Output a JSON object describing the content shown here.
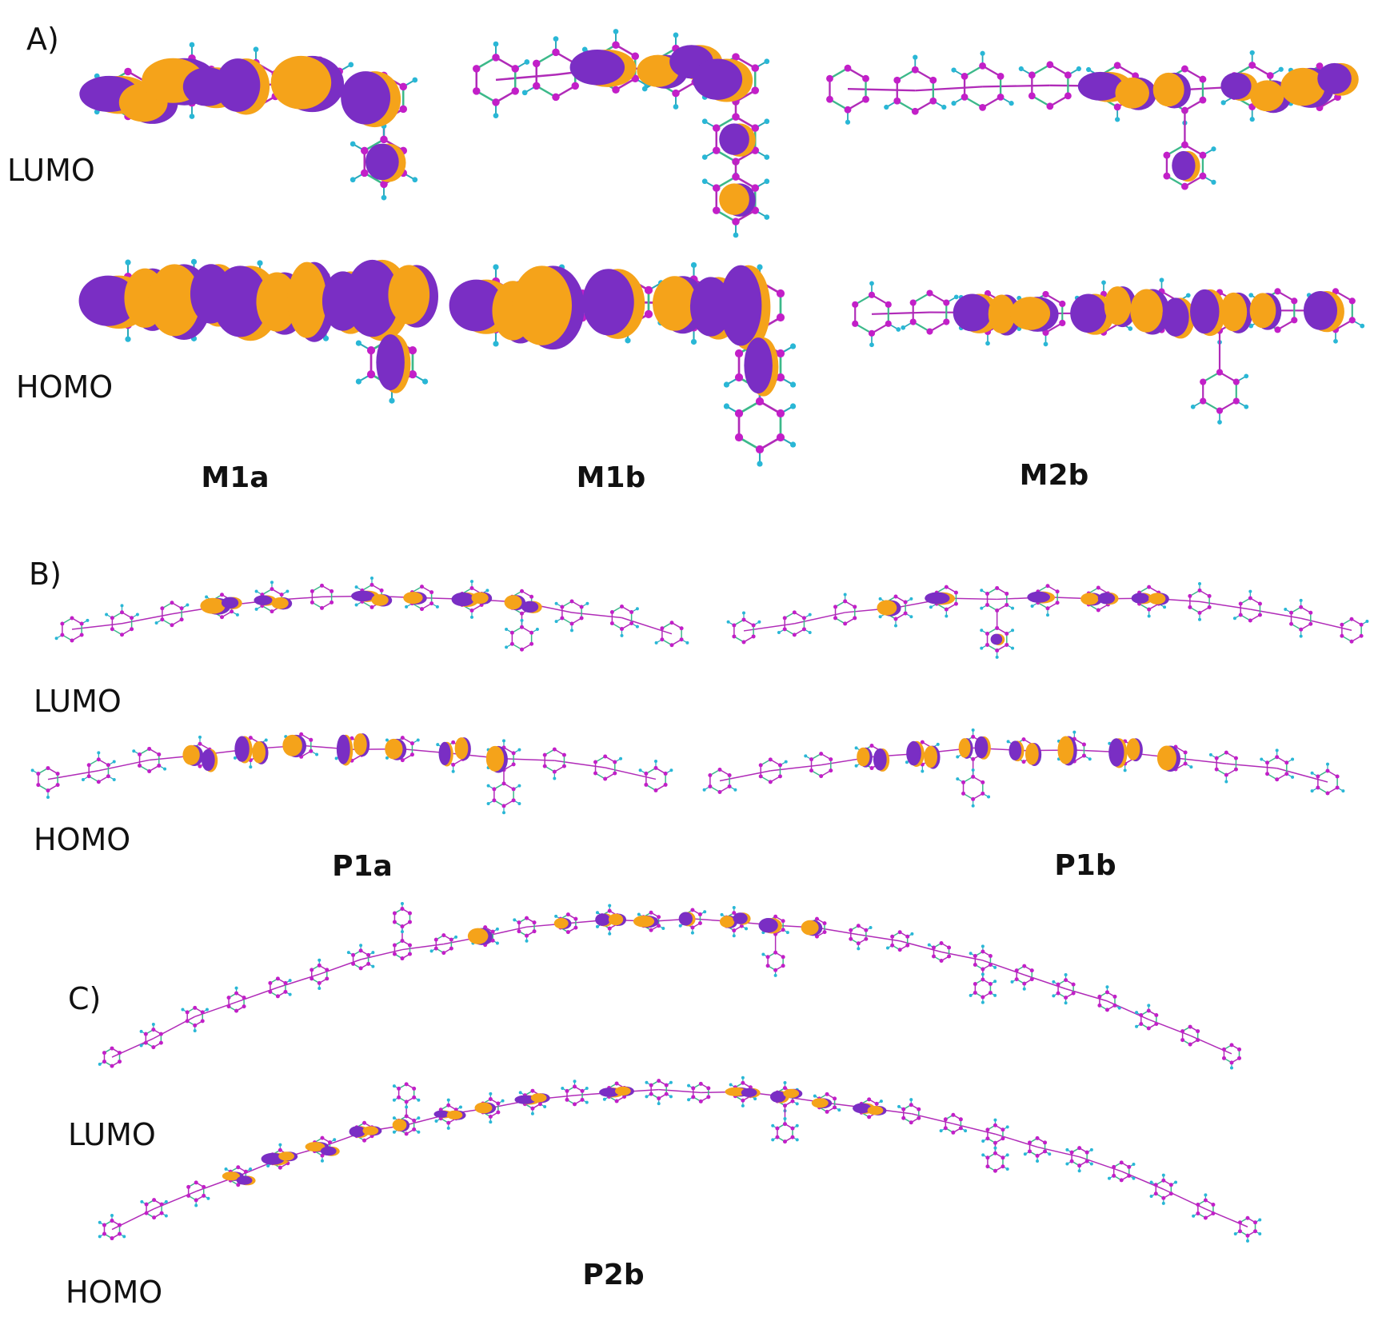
{
  "panels": [
    {
      "label": "A)",
      "rows": [
        "LUMO",
        "HOMO"
      ],
      "molecules": [
        "M1a",
        "M1b",
        "M2b"
      ]
    },
    {
      "label": "B)",
      "rows": [
        "LUMO",
        "HOMO"
      ],
      "molecules": [
        "P1a",
        "P1b"
      ]
    },
    {
      "label": "C)",
      "rows": [
        "LUMO",
        "HOMO"
      ],
      "molecules": [
        "P2b"
      ]
    }
  ]
}
